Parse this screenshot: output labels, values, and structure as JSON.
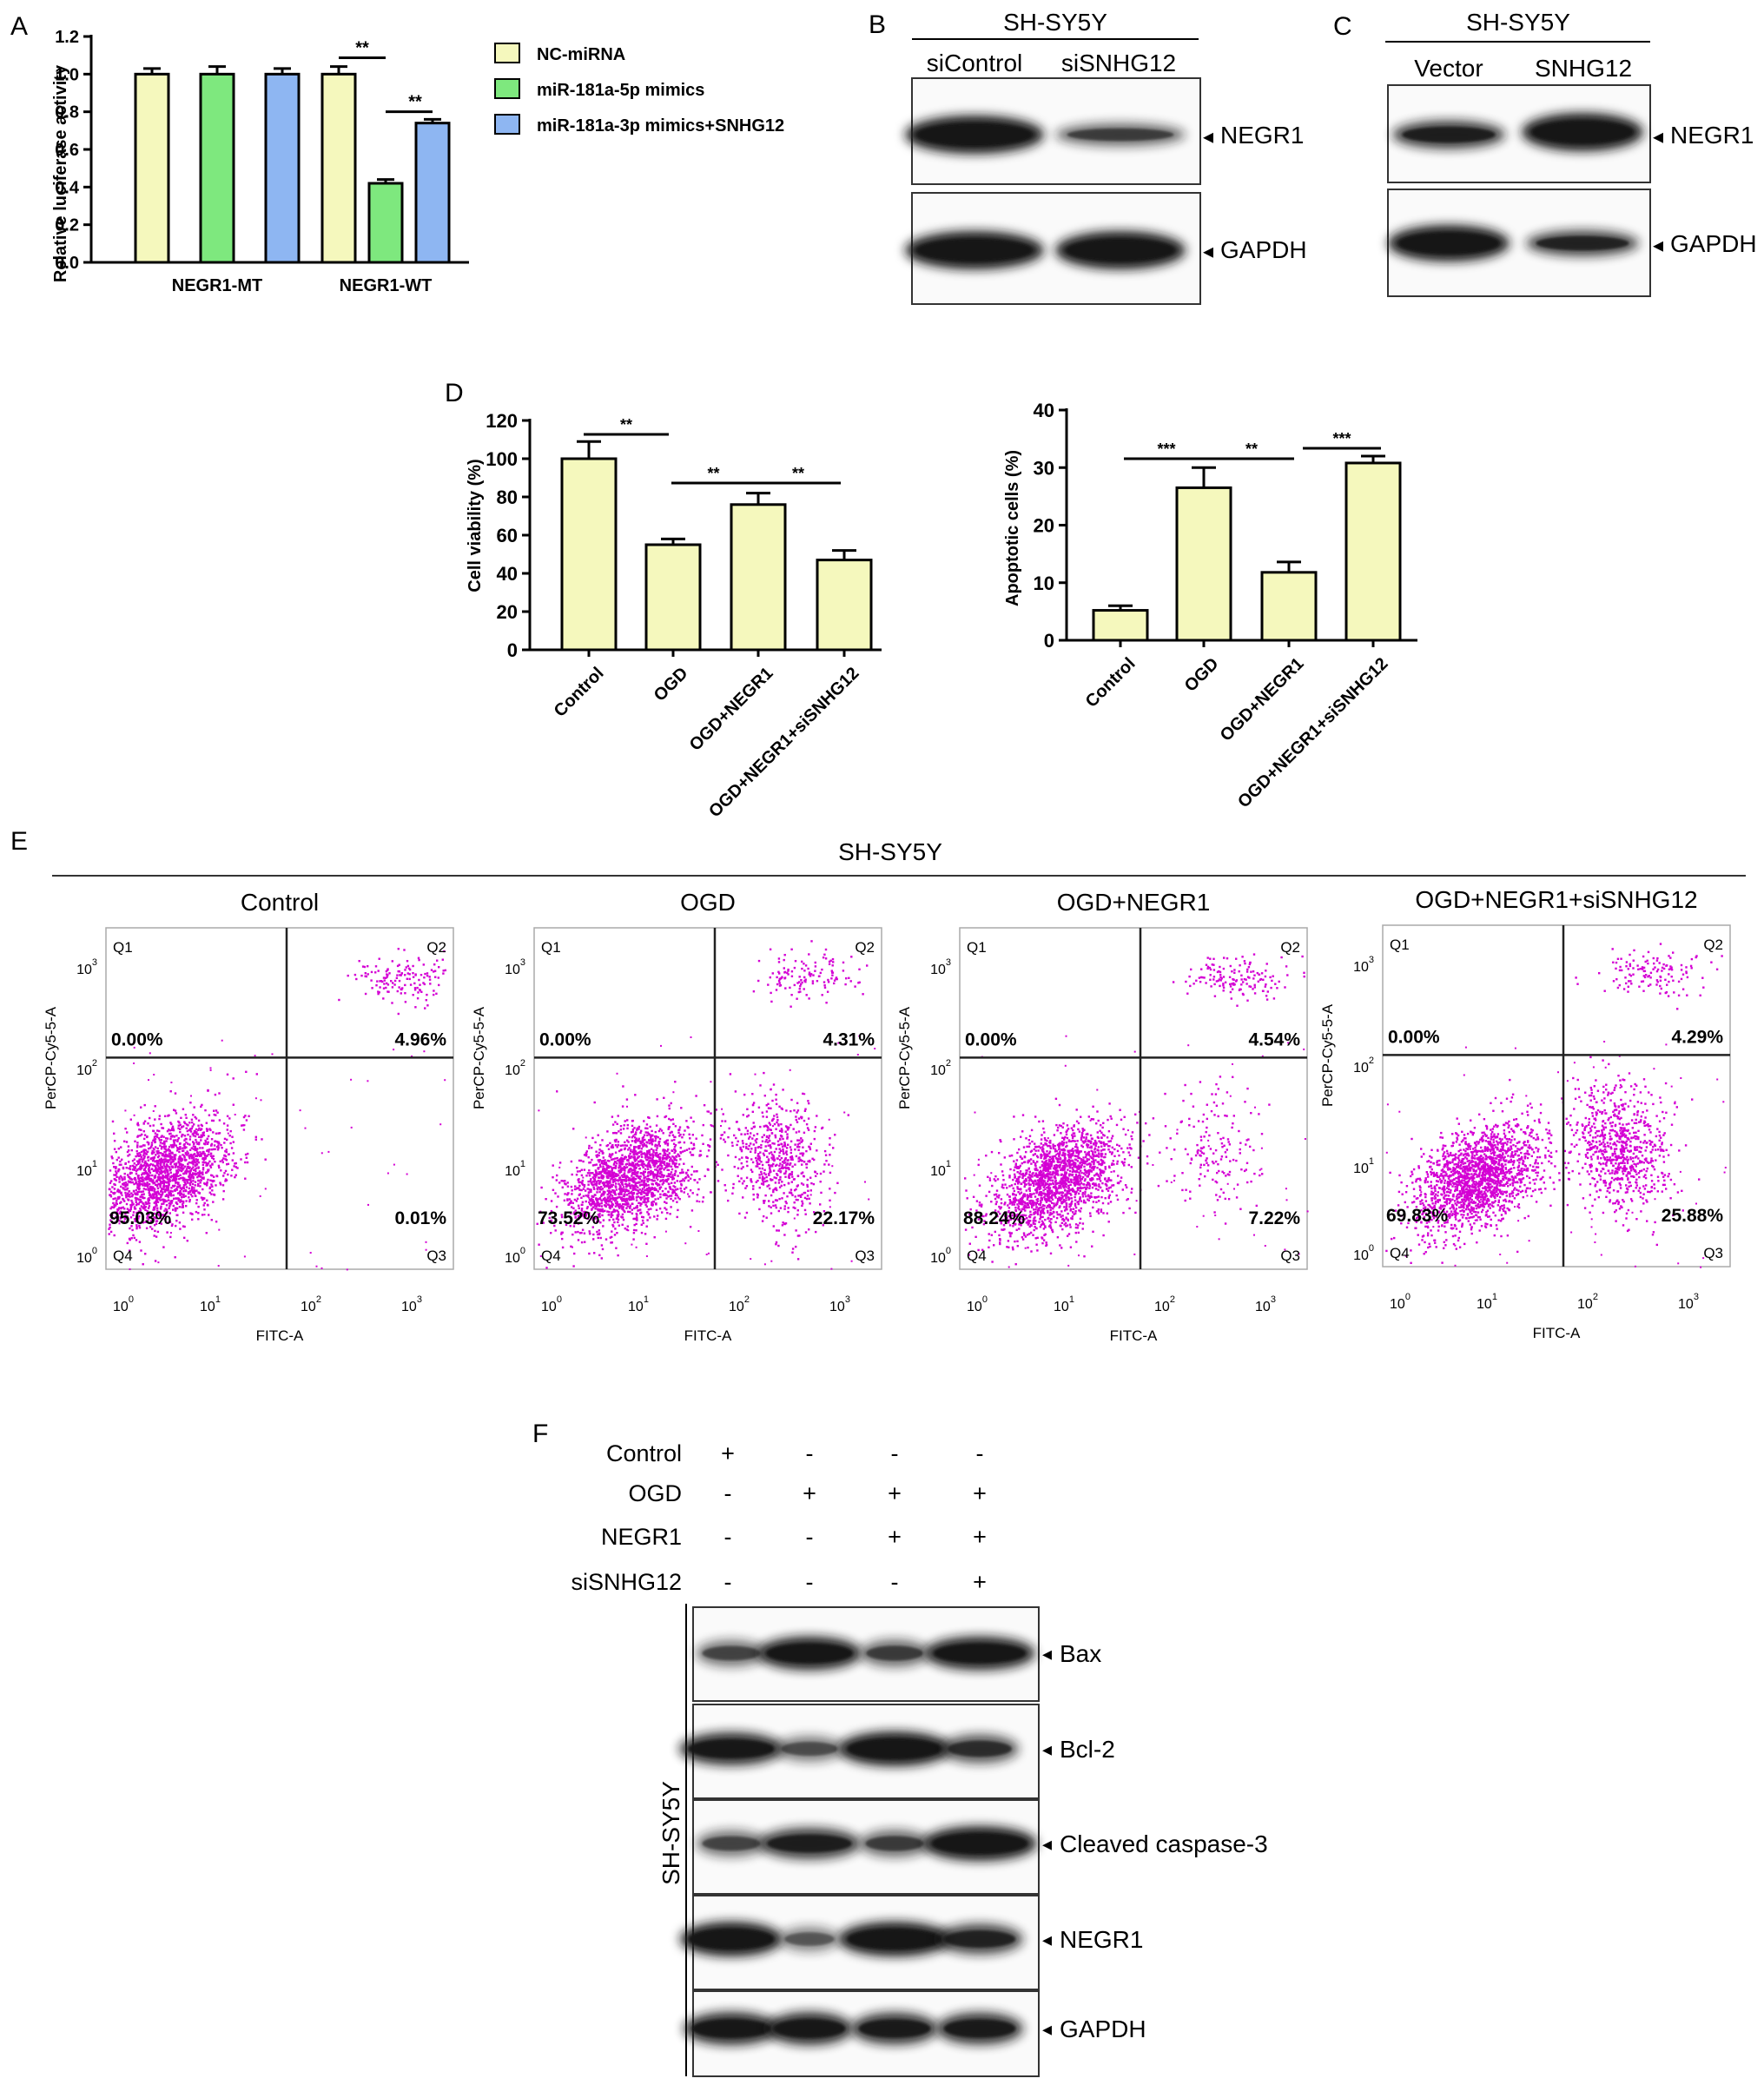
{
  "colors": {
    "yellow": "#f5f8bd",
    "green": "#7ee87e",
    "blue": "#8eb6f2",
    "flow": "#d400d4",
    "band": "#151515"
  },
  "panels": {
    "A": "A",
    "B": "B",
    "C": "C",
    "D": "D",
    "E": "E",
    "F": "F"
  },
  "chart_data": [
    {
      "panel": "A",
      "type": "bar",
      "ylabel": "Relative luciferase activity",
      "ylim": [
        0,
        1.2
      ],
      "yticks": [
        "0.0",
        "0.2",
        "0.4",
        "0.6",
        "0.8",
        "1.0",
        "1.2"
      ],
      "categories": [
        "NEGR1-MT",
        "NEGR1-WT"
      ],
      "series": [
        {
          "name": "NC-miRNA",
          "color": "#f5f8bd",
          "values": [
            1.0,
            1.0
          ],
          "err": [
            0.03,
            0.04
          ]
        },
        {
          "name": "miR-181a-5p mimics",
          "color": "#7ee87e",
          "values": [
            1.0,
            0.42
          ],
          "err": [
            0.04,
            0.02
          ]
        },
        {
          "name": "miR-181a-3p mimics+SNHG12",
          "color": "#8eb6f2",
          "values": [
            1.0,
            0.74
          ],
          "err": [
            0.03,
            0.02
          ]
        }
      ],
      "significance": [
        "**",
        "**"
      ]
    },
    {
      "panel": "D-left",
      "type": "bar",
      "ylabel": "Cell viability (%)",
      "ylim": [
        0,
        120
      ],
      "yticks": [
        "0",
        "20",
        "40",
        "60",
        "80",
        "100",
        "120"
      ],
      "categories": [
        "Control",
        "OGD",
        "OGD+NEGR1",
        "OGD+NEGR1+siSNHG12"
      ],
      "values": [
        100,
        55,
        76,
        47
      ],
      "err": [
        9,
        3,
        6,
        5
      ],
      "significance": [
        "**",
        "**",
        "**"
      ]
    },
    {
      "panel": "D-right",
      "type": "bar",
      "ylabel": "Apoptotic cells (%)",
      "ylim": [
        0,
        40
      ],
      "yticks": [
        "0",
        "10",
        "20",
        "30",
        "40"
      ],
      "categories": [
        "Control",
        "OGD",
        "OGD+NEGR1",
        "OGD+NEGR1+siSNHG12"
      ],
      "values": [
        5.2,
        26.5,
        11.8,
        30.8
      ],
      "err": [
        0.8,
        3.5,
        1.8,
        1.2
      ],
      "significance": [
        "***",
        "**",
        "***"
      ]
    },
    {
      "panel": "E",
      "type": "scatter",
      "title": "SH-SY5Y",
      "xlabel": "FITC-A",
      "ylabel": "PerCP-Cy5-5-A",
      "axis_scale": "log",
      "xticks": [
        "0",
        "1",
        "2",
        "3"
      ],
      "quadrant_labels": [
        "Q1",
        "Q2",
        "Q3",
        "Q4"
      ],
      "plots": [
        {
          "name": "Control",
          "q1": "0.00%",
          "q2": "4.96%",
          "q3": "0.01%",
          "q4": "95.03%"
        },
        {
          "name": "OGD",
          "q1": "0.00%",
          "q2": "4.31%",
          "q3": "22.17%",
          "q4": "73.52%"
        },
        {
          "name": "OGD+NEGR1",
          "q1": "0.00%",
          "q2": "4.54%",
          "q3": "7.22%",
          "q4": "88.24%"
        },
        {
          "name": "OGD+NEGR1+siSNHG12",
          "q1": "0.00%",
          "q2": "4.29%",
          "q3": "25.88%",
          "q4": "69.83%"
        }
      ]
    }
  ],
  "blot_B": {
    "header": "SH-SY5Y",
    "lanes": [
      "siControl",
      "siSNHG12"
    ],
    "bands": [
      "NEGR1",
      "GAPDH"
    ],
    "intensity": [
      [
        1.0,
        0.55
      ],
      [
        1.0,
        1.0
      ]
    ]
  },
  "blot_C": {
    "header": "SH-SY5Y",
    "lanes": [
      "Vector",
      "SNHG12"
    ],
    "bands": [
      "NEGR1",
      "GAPDH"
    ],
    "intensity": [
      [
        0.8,
        1.0
      ],
      [
        1.0,
        0.75
      ]
    ]
  },
  "blot_F": {
    "side_label": "SH-SY5Y",
    "rows": [
      {
        "label": "Control",
        "marks": [
          "+",
          "-",
          "-",
          "-"
        ]
      },
      {
        "label": "OGD",
        "marks": [
          "-",
          "+",
          "+",
          "+"
        ]
      },
      {
        "label": "NEGR1",
        "marks": [
          "-",
          "-",
          "+",
          "+"
        ]
      },
      {
        "label": "siSNHG12",
        "marks": [
          "-",
          "-",
          "-",
          "+"
        ]
      }
    ],
    "bands": [
      "Bax",
      "Bcl-2",
      "Cleaved  caspase-3",
      "NEGR1",
      "GAPDH"
    ],
    "intensity": [
      [
        0.5,
        0.95,
        0.55,
        0.95
      ],
      [
        0.9,
        0.45,
        1.0,
        0.65
      ],
      [
        0.5,
        0.8,
        0.55,
        1.0
      ],
      [
        1.0,
        0.4,
        1.0,
        0.75
      ],
      [
        0.9,
        0.9,
        0.85,
        0.85
      ]
    ]
  }
}
